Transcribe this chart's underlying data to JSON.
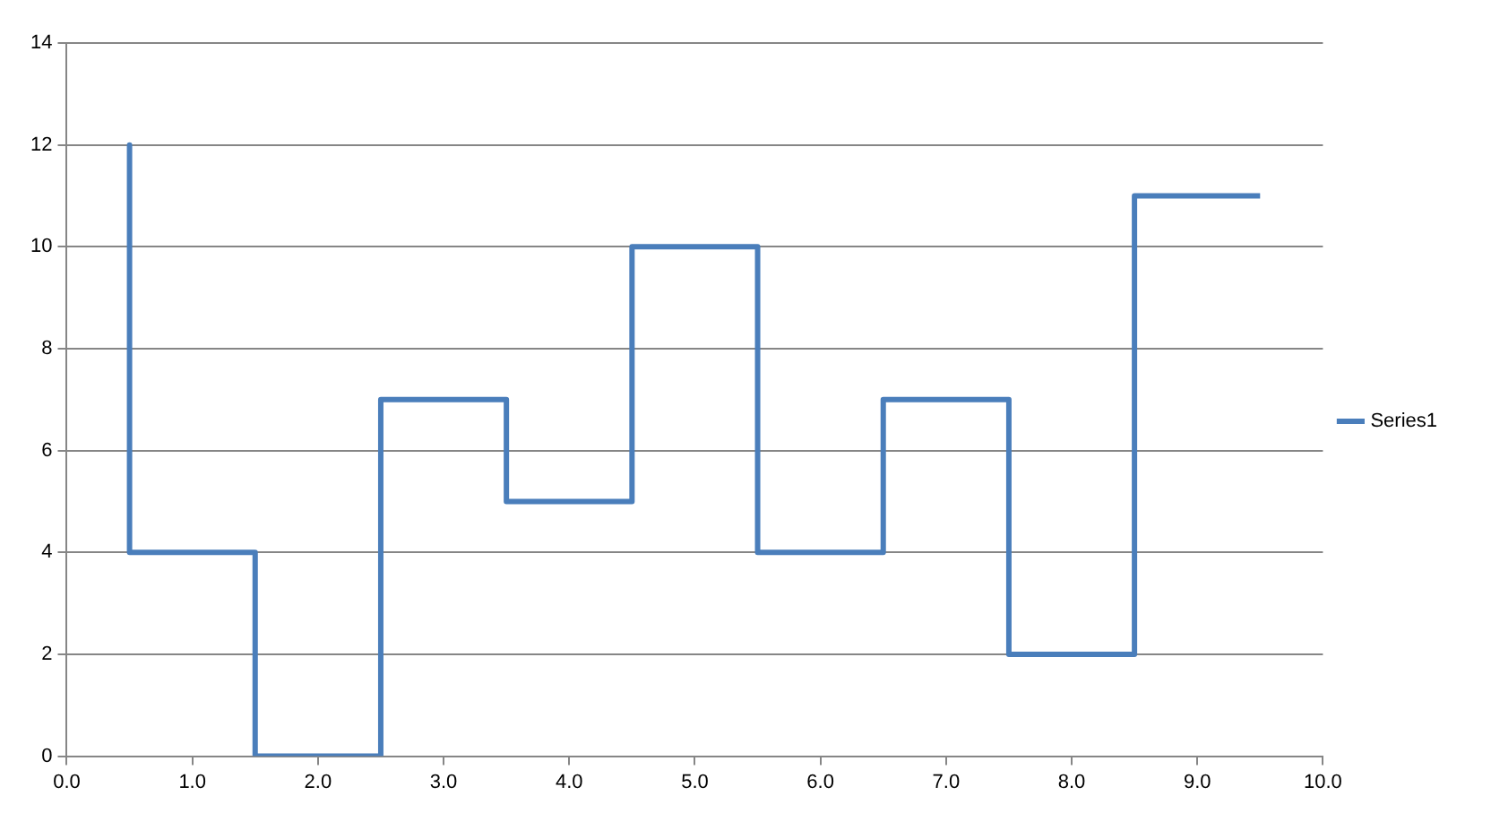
{
  "chart_data": {
    "type": "line",
    "x": [
      0.5,
      0.5,
      1.5,
      1.5,
      2.5,
      2.5,
      3.5,
      3.5,
      4.5,
      4.5,
      5.5,
      5.5,
      6.5,
      6.5,
      7.5,
      7.5,
      8.5,
      8.5,
      9.5
    ],
    "series": [
      {
        "name": "Series1",
        "color": "#4a7ebb",
        "values": [
          12,
          4,
          4,
          0,
          0,
          7,
          7,
          5,
          5,
          10,
          10,
          4,
          4,
          7,
          7,
          2,
          2,
          11,
          11
        ]
      }
    ],
    "xlim": [
      0,
      10
    ],
    "xticks": [
      {
        "value": 0,
        "label": "0.0"
      },
      {
        "value": 1,
        "label": "1.0"
      },
      {
        "value": 2,
        "label": "2.0"
      },
      {
        "value": 3,
        "label": "3.0"
      },
      {
        "value": 4,
        "label": "4.0"
      },
      {
        "value": 5,
        "label": "5.0"
      },
      {
        "value": 6,
        "label": "6.0"
      },
      {
        "value": 7,
        "label": "7.0"
      },
      {
        "value": 8,
        "label": "8.0"
      },
      {
        "value": 9,
        "label": "9.0"
      },
      {
        "value": 10,
        "label": "10.0"
      }
    ],
    "ylim": [
      0,
      14
    ],
    "yticks": [
      0,
      2,
      4,
      6,
      8,
      10,
      12,
      14
    ],
    "grid": "y",
    "legend": "right",
    "marker": "none",
    "line_style": "solid"
  }
}
